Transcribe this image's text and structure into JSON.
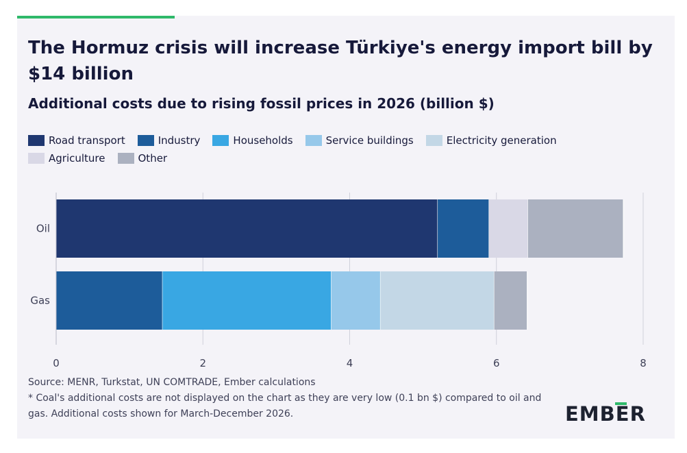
{
  "header": {
    "title": "The Hormuz crisis will increase Türkiye's energy import bill by $14 billion",
    "subtitle": "Additional costs due to rising fossil prices in 2026 (billion $)"
  },
  "colors": {
    "accent": "#2fb96a",
    "background": "#f4f3f8"
  },
  "chart_data": {
    "type": "bar",
    "orientation": "horizontal",
    "stacked": true,
    "categories": [
      "Oil",
      "Gas"
    ],
    "series": [
      {
        "name": "Road transport",
        "color": "#1f3770",
        "values": [
          5.2,
          0
        ]
      },
      {
        "name": "Industry",
        "color": "#1d5c9a",
        "values": [
          0.7,
          1.45
        ]
      },
      {
        "name": "Households",
        "color": "#39a7e3",
        "values": [
          0,
          2.3
        ]
      },
      {
        "name": "Service buildings",
        "color": "#96c8ea",
        "values": [
          0,
          0.67
        ]
      },
      {
        "name": "Electricity generation",
        "color": "#c3d7e6",
        "values": [
          0,
          1.55
        ]
      },
      {
        "name": "Agriculture",
        "color": "#d9d8e6",
        "values": [
          0.53,
          0
        ]
      },
      {
        "name": "Other",
        "color": "#abb1c0",
        "values": [
          1.3,
          0.45
        ]
      }
    ],
    "xlim": [
      0,
      8
    ],
    "xticks": [
      0,
      2,
      4,
      6,
      8
    ],
    "xlabel": "",
    "ylabel": "",
    "grid": "vertical",
    "legend_position": "top"
  },
  "footer": {
    "source": "Source: MENR, Turkstat, UN COMTRADE, Ember calculations",
    "note": "* Coal's additional costs are not displayed on the chart as they are very low (0.1 bn $) compared to oil and gas. Additional costs shown for March-December 2026."
  },
  "logo": {
    "text": "EMBER"
  }
}
